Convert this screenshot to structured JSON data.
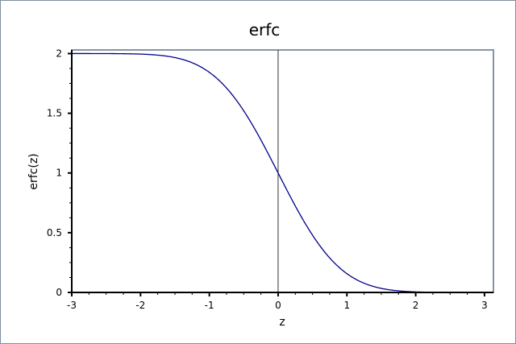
{
  "chart_data": {
    "type": "line",
    "title": "erfc",
    "xlabel": "z",
    "ylabel": "erfc(z)",
    "xlim": [
      -3,
      3.13
    ],
    "ylim": [
      0,
      2.03
    ],
    "xticks": [
      "-3",
      "-2",
      "-1",
      "0",
      "1",
      "2",
      "3"
    ],
    "yticks": [
      "0",
      "0.5",
      "1",
      "1.5",
      "2"
    ],
    "x_minor_step": 0.25,
    "y_minor_step": 0.125,
    "grid": false,
    "vertical_reference_line_x": 0,
    "series": [
      {
        "function": "erfc(z)",
        "color": "#00008b",
        "x": [
          -3,
          -2.5,
          -2,
          -1.5,
          -1,
          -0.5,
          0,
          0.5,
          1,
          1.5,
          2,
          2.5,
          3,
          3.13
        ],
        "y": [
          2.0,
          1.9996,
          1.9953,
          1.9661,
          1.8427,
          1.5205,
          1.0,
          0.4795,
          0.1573,
          0.0339,
          0.0047,
          0.0004,
          2e-05,
          1e-05
        ]
      }
    ],
    "colors": {
      "frame": "#7d8fa0",
      "plot_box": "#8595a5",
      "axis": "#000000",
      "zero_line": "#333333"
    }
  }
}
